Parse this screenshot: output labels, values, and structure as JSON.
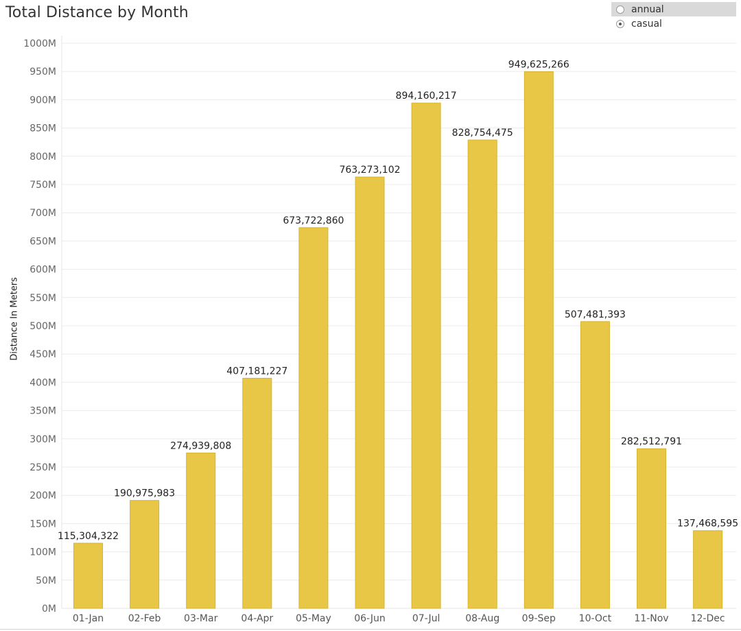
{
  "title": "Total Distance by Month",
  "legend": {
    "options": [
      {
        "label": "annual",
        "checked": false
      },
      {
        "label": "casual",
        "checked": true
      }
    ]
  },
  "chart_data": {
    "type": "bar",
    "title": "Total Distance by Month",
    "xlabel": "",
    "ylabel": "Distance In Meters",
    "categories": [
      "01-Jan",
      "02-Feb",
      "03-Mar",
      "04-Apr",
      "05-May",
      "06-Jun",
      "07-Jul",
      "08-Aug",
      "09-Sep",
      "10-Oct",
      "11-Nov",
      "12-Dec"
    ],
    "values": [
      115304322,
      190975983,
      274939808,
      407181227,
      673722860,
      763273102,
      894160217,
      828754475,
      949625266,
      507481393,
      282512791,
      137468595
    ],
    "data_labels": [
      "115,304,322",
      "190,975,983",
      "274,939,808",
      "407,181,227",
      "673,722,860",
      "763,273,102",
      "894,160,217",
      "828,754,475",
      "949,625,266",
      "507,481,393",
      "282,512,791",
      "137,468,595"
    ],
    "ylim": [
      0,
      1000000000
    ],
    "yticks": [
      0,
      50000000,
      100000000,
      150000000,
      200000000,
      250000000,
      300000000,
      350000000,
      400000000,
      450000000,
      500000000,
      550000000,
      600000000,
      650000000,
      700000000,
      750000000,
      800000000,
      850000000,
      900000000,
      950000000,
      1000000000
    ],
    "ytick_labels": [
      "0M",
      "50M",
      "100M",
      "150M",
      "200M",
      "250M",
      "300M",
      "350M",
      "400M",
      "450M",
      "500M",
      "550M",
      "600M",
      "650M",
      "700M",
      "750M",
      "800M",
      "850M",
      "900M",
      "950M",
      "1000M"
    ],
    "grid": true,
    "legend_position": "top-right",
    "bar_color": "#E8C746",
    "bar_edge_color": "#D6B42F",
    "grid_color": "#EBEBEB"
  }
}
